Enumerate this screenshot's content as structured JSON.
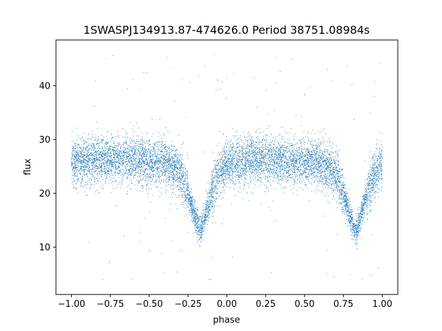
{
  "chart_data": {
    "type": "scatter",
    "title": "1SWASPJ134913.87-474626.0 Period 38751.08984s",
    "xlabel": "phase",
    "ylabel": "flux",
    "xlim": [
      -1.1,
      1.1
    ],
    "ylim": [
      1.2,
      48.5
    ],
    "xticks": [
      -1.0,
      -0.75,
      -0.5,
      -0.25,
      0.0,
      0.25,
      0.5,
      0.75,
      1.0
    ],
    "xtick_labels": [
      "−1.00",
      "−0.75",
      "−0.50",
      "−0.25",
      "0.00",
      "0.25",
      "0.50",
      "0.75",
      "1.00"
    ],
    "yticks": [
      10,
      20,
      30,
      40
    ],
    "ytick_labels": [
      "10",
      "20",
      "30",
      "40"
    ],
    "grid": false,
    "marker_color": "#1f77b4",
    "model": {
      "description_points_phase_flux": [
        [
          -1.0,
          25.8
        ],
        [
          -0.8,
          26.4
        ],
        [
          -0.6,
          26.2
        ],
        [
          -0.4,
          25.6
        ],
        [
          -0.3,
          24.0
        ],
        [
          -0.25,
          20.0
        ],
        [
          -0.2,
          15.0
        ],
        [
          -0.17,
          13.0
        ],
        [
          -0.14,
          15.5
        ],
        [
          -0.1,
          20.0
        ],
        [
          -0.05,
          24.0
        ],
        [
          0.0,
          25.5
        ],
        [
          0.2,
          26.3
        ],
        [
          0.4,
          26.0
        ],
        [
          0.6,
          25.6
        ],
        [
          0.7,
          24.0
        ],
        [
          0.75,
          20.0
        ],
        [
          0.8,
          15.0
        ],
        [
          0.83,
          13.0
        ],
        [
          0.86,
          15.5
        ],
        [
          0.9,
          20.0
        ],
        [
          0.95,
          23.5
        ],
        [
          1.0,
          25.5
        ]
      ],
      "scatter_sigma": 2.2,
      "n_points": 9000,
      "n_outliers": 120,
      "outlier_range": [
        3.5,
        46.0
      ]
    }
  }
}
